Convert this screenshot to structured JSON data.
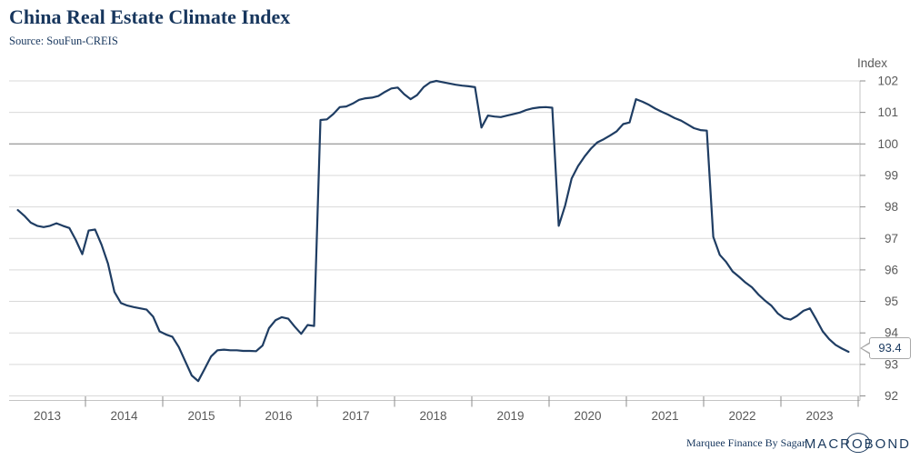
{
  "header": {
    "title": "China Real Estate Climate Index",
    "source": "Source: SouFun-CREIS"
  },
  "y_axis": {
    "unit_label": "Index"
  },
  "callout": {
    "last_value_label": "93.4"
  },
  "footer": {
    "watermark": "Marquee Finance By Sagar",
    "logo_text": "MACROBOND",
    "logo": {
      "left": "MACR",
      "o": "O",
      "right": "BOND"
    }
  },
  "colors": {
    "line": "#1f3d63",
    "title_text": "#17365d",
    "axis_text": "#595959",
    "gridline": "#d9d9d9",
    "hundred_line": "#7f7f7f",
    "axis_line": "#c4c4c4",
    "tick": "#8c8c8c",
    "callout_border": "#a8a8a8",
    "callout_text": "#17375e",
    "brand": "#1b3a5e"
  },
  "chart_data": {
    "type": "line",
    "title": "China Real Estate Climate Index",
    "source": "SouFun-CREIS",
    "ylabel": "Index",
    "ylim": [
      92,
      102
    ],
    "y_ticks": [
      92,
      93,
      94,
      95,
      96,
      97,
      98,
      99,
      100,
      101,
      102
    ],
    "highlight_gridline": 100,
    "grid": "horizontal",
    "legend": false,
    "x_tick_year_boundaries": [
      2014,
      2015,
      2016,
      2017,
      2018,
      2019,
      2020,
      2021,
      2022,
      2023,
      2024
    ],
    "x_year_labels": [
      "2013",
      "2014",
      "2015",
      "2016",
      "2017",
      "2018",
      "2019",
      "2020",
      "2021",
      "2022",
      "2023"
    ],
    "last_value": 93.4,
    "series": [
      {
        "name": "China Real Estate Climate Index",
        "start_month": "2013-02",
        "frequency": "monthly",
        "values": [
          97.9,
          97.72,
          97.5,
          97.4,
          97.36,
          97.4,
          97.48,
          97.4,
          97.33,
          96.95,
          96.5,
          97.25,
          97.28,
          96.8,
          96.2,
          95.3,
          94.95,
          94.87,
          94.82,
          94.78,
          94.74,
          94.52,
          94.05,
          93.95,
          93.88,
          93.55,
          93.1,
          92.65,
          92.47,
          92.85,
          93.25,
          93.45,
          93.47,
          93.45,
          93.45,
          93.43,
          93.43,
          93.42,
          93.6,
          94.15,
          94.4,
          94.5,
          94.45,
          94.2,
          93.97,
          94.25,
          94.22,
          100.76,
          100.78,
          100.95,
          101.17,
          101.19,
          101.28,
          101.4,
          101.45,
          101.47,
          101.52,
          101.65,
          101.76,
          101.79,
          101.58,
          101.42,
          101.55,
          101.8,
          101.95,
          102.0,
          101.96,
          101.92,
          101.88,
          101.85,
          101.83,
          101.8,
          100.52,
          100.9,
          100.87,
          100.85,
          100.9,
          100.95,
          101.0,
          101.08,
          101.13,
          101.16,
          101.17,
          101.15,
          97.4,
          98.05,
          98.9,
          99.3,
          99.6,
          99.85,
          100.05,
          100.15,
          100.27,
          100.4,
          100.63,
          100.68,
          101.42,
          101.34,
          101.24,
          101.12,
          101.02,
          100.93,
          100.82,
          100.74,
          100.62,
          100.5,
          100.44,
          100.42,
          97.05,
          96.48,
          96.25,
          95.95,
          95.78,
          95.6,
          95.45,
          95.22,
          95.03,
          94.87,
          94.62,
          94.47,
          94.42,
          94.54,
          94.7,
          94.78,
          94.42,
          94.05,
          93.8,
          93.62,
          93.5,
          93.4
        ]
      }
    ]
  }
}
